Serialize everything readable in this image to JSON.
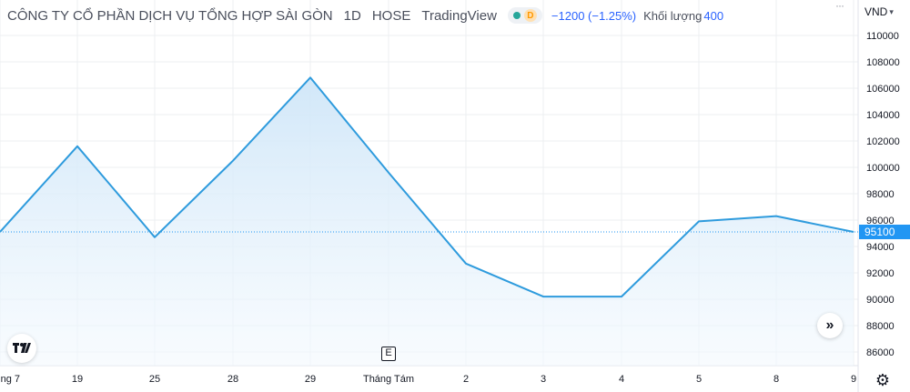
{
  "header": {
    "company": "CÔNG TY CỔ PHẦN DỊCH VỤ TỔNG HỢP SÀI GÒN",
    "interval": "1D",
    "exchange": "HOSE",
    "source": "TradingView",
    "status_letter": "D",
    "change": "−1200 (−1.25%)",
    "volume_label": "Khối lượng",
    "volume_value": "400"
  },
  "currency": "VND",
  "last_price_label": "95100",
  "e_marker": "E",
  "colors": {
    "line": "#2e9bdd",
    "area_top": "#cfe6f8",
    "area_bottom": "#f3f9fe",
    "last_price": "#2196f3",
    "grid": "#eceff2"
  },
  "chart_data": {
    "type": "area",
    "x": [
      "ng 7",
      "19",
      "25",
      "28",
      "29",
      "Tháng Tám",
      "2",
      "3",
      "4",
      "5",
      "8",
      "9"
    ],
    "values": [
      95100,
      101600,
      94700,
      100500,
      106800,
      99600,
      92700,
      90200,
      90200,
      95900,
      96300,
      95100
    ],
    "x_tick_labels": [
      "ng 7",
      "19",
      "25",
      "28",
      "29",
      "Tháng Tám",
      "2",
      "3",
      "4",
      "5",
      "8",
      "9"
    ],
    "y_tick_labels": [
      "110000",
      "108000",
      "106000",
      "104000",
      "102000",
      "100000",
      "98000",
      "96000",
      "94000",
      "92000",
      "90000",
      "88000",
      "86000"
    ],
    "ylim": [
      85000,
      111000
    ],
    "last_value": 95100,
    "grid": true
  }
}
